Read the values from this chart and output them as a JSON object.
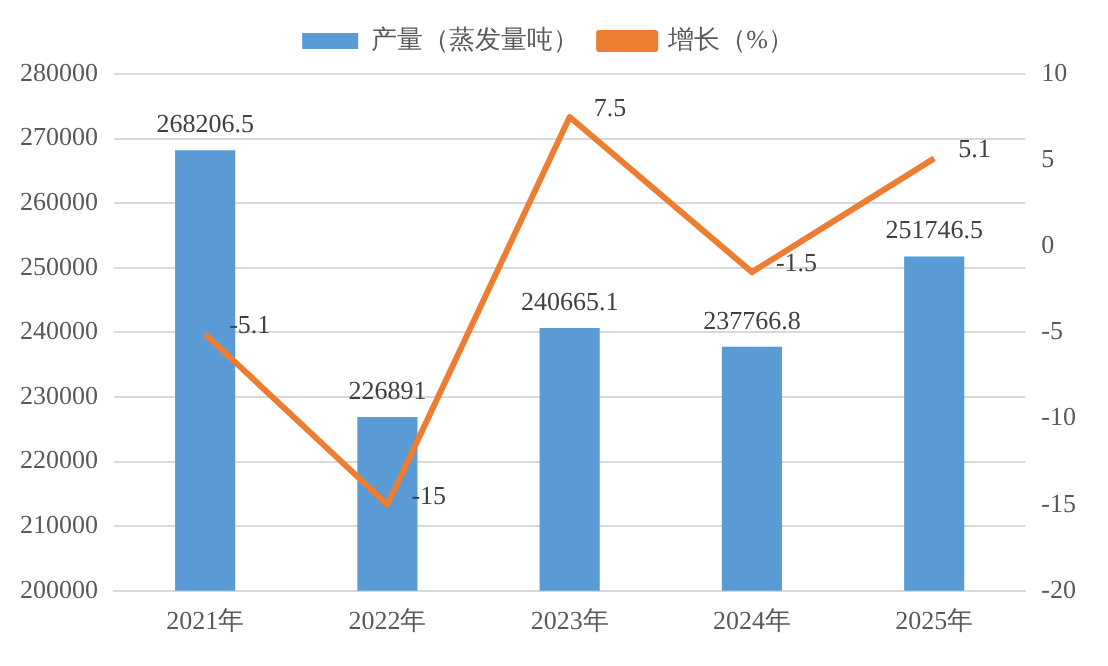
{
  "chart_data": {
    "type": "bar",
    "categories": [
      "2021年",
      "2022年",
      "2023年",
      "2024年",
      "2025年"
    ],
    "series": [
      {
        "name": "产量（蒸发量吨）",
        "color": "#5b9bd5",
        "values": [
          268206.5,
          226891,
          240665.1,
          237766.8,
          251746.5
        ]
      },
      {
        "name": "增长（%）",
        "type": "line",
        "axis": "y2",
        "color": "#ed7d31",
        "values": [
          -5.1,
          -15,
          7.5,
          -1.5,
          5.1
        ]
      }
    ],
    "ylim": [
      200000,
      280000
    ],
    "yticks": [
      200000,
      210000,
      220000,
      230000,
      240000,
      250000,
      260000,
      270000,
      280000
    ],
    "y2lim": [
      -20,
      10
    ],
    "y2ticks": [
      -20,
      -15,
      -10,
      -5,
      0,
      5,
      10
    ],
    "grid": "y",
    "legend": "top",
    "marker": "none",
    "data_labels": true
  }
}
